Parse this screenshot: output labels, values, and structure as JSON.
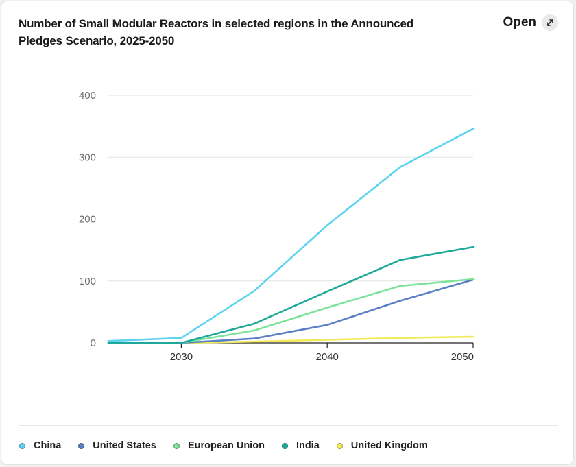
{
  "header": {
    "title": "Number of Small Modular Reactors in selected regions in the Announced Pledges Scenario, 2025-2050",
    "open_label": "Open",
    "open_icon": "expand-arrows-icon"
  },
  "chart_data": {
    "type": "line",
    "title": "Number of Small Modular Reactors in selected regions in the Announced Pledges Scenario, 2025-2050",
    "xlabel": "",
    "ylabel": "",
    "x": [
      2025,
      2030,
      2035,
      2040,
      2045,
      2050
    ],
    "xlim": [
      2025,
      2050
    ],
    "ylim": [
      0,
      400
    ],
    "x_ticks": [
      2030,
      2040,
      2050
    ],
    "y_ticks": [
      0,
      100,
      200,
      300,
      400
    ],
    "grid": "horizontal",
    "legend_position": "bottom",
    "series": [
      {
        "name": "China",
        "color": "#5dd3f0",
        "values": [
          3,
          8,
          84,
          190,
          284,
          346
        ]
      },
      {
        "name": "United States",
        "color": "#5a7fc4",
        "values": [
          0,
          0,
          7,
          29,
          68,
          102
        ]
      },
      {
        "name": "European Union",
        "color": "#7de39a",
        "values": [
          0,
          0,
          20,
          57,
          92,
          103
        ]
      },
      {
        "name": "India",
        "color": "#1ea899",
        "values": [
          0,
          0,
          31,
          83,
          134,
          155
        ]
      },
      {
        "name": "United Kingdom",
        "color": "#f2ea58",
        "values": [
          0,
          0,
          2,
          5,
          8,
          10
        ]
      }
    ]
  }
}
